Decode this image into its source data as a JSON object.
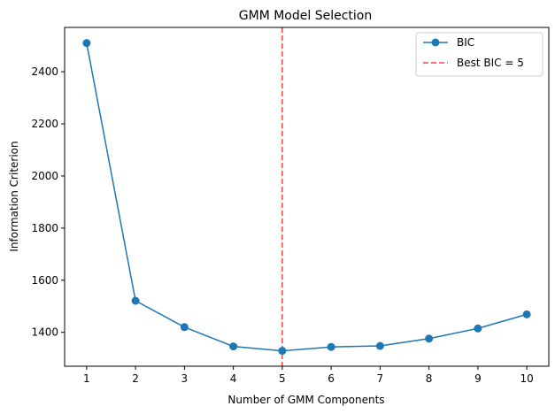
{
  "chart_data": {
    "type": "line",
    "title": "GMM Model Selection",
    "xlabel": "Number of GMM Components",
    "ylabel": "Information Criterion",
    "x": [
      1,
      2,
      3,
      4,
      5,
      6,
      7,
      8,
      9,
      10
    ],
    "xlim": [
      0.55,
      10.45
    ],
    "ylim": [
      1270,
      2570
    ],
    "xticks": [
      1,
      2,
      3,
      4,
      5,
      6,
      7,
      8,
      9,
      10
    ],
    "yticks": [
      1400,
      1600,
      1800,
      2000,
      2200,
      2400
    ],
    "grid": false,
    "legend_position": "top-right",
    "series": [
      {
        "name": "BIC",
        "color": "#1f77b4",
        "marker": "circle",
        "values": [
          2510,
          1521,
          1420,
          1346,
          1329,
          1344,
          1348,
          1376,
          1415,
          1469
        ]
      }
    ],
    "annotations": [
      {
        "type": "vline",
        "x": 5,
        "label": "Best BIC = 5",
        "color": "#ff0000",
        "style": "dashed"
      }
    ]
  }
}
